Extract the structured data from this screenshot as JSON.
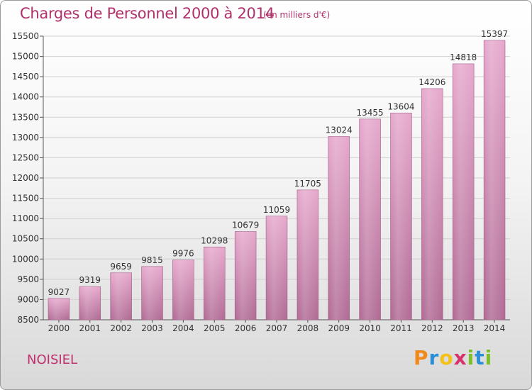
{
  "header": {
    "title": "Charges de Personnel 2000 à 2014",
    "subtitle": "(en milliers d'€)"
  },
  "footer": {
    "commune": "NOISIEL",
    "logo_letters": [
      "P",
      "r",
      "o",
      "x",
      "i",
      "t",
      "i"
    ],
    "logo_colors": [
      "#f08a1c",
      "#2a8fd6",
      "#f2c21b",
      "#d6336c",
      "#7bbf2a",
      "#2a8fd6",
      "#7bbf2a"
    ]
  },
  "chart_data": {
    "type": "bar",
    "title": "Charges de Personnel 2000 à 2014",
    "subtitle": "(en milliers d'€)",
    "categories": [
      "2000",
      "2001",
      "2002",
      "2003",
      "2004",
      "2005",
      "2006",
      "2007",
      "2008",
      "2009",
      "2010",
      "2011",
      "2012",
      "2013",
      "2014"
    ],
    "values": [
      9027,
      9319,
      9659,
      9815,
      9976,
      10298,
      10679,
      11059,
      11705,
      13024,
      13455,
      13604,
      14206,
      14818,
      15397
    ],
    "ylim": [
      8500,
      15500
    ],
    "yticks": [
      8500,
      9000,
      9500,
      10000,
      10500,
      11000,
      11500,
      12000,
      12500,
      13000,
      13500,
      14000,
      14500,
      15000,
      15500
    ],
    "grid": true,
    "bar_color_top": "#e6a8cc",
    "bar_color_bottom": "#b06a94"
  }
}
